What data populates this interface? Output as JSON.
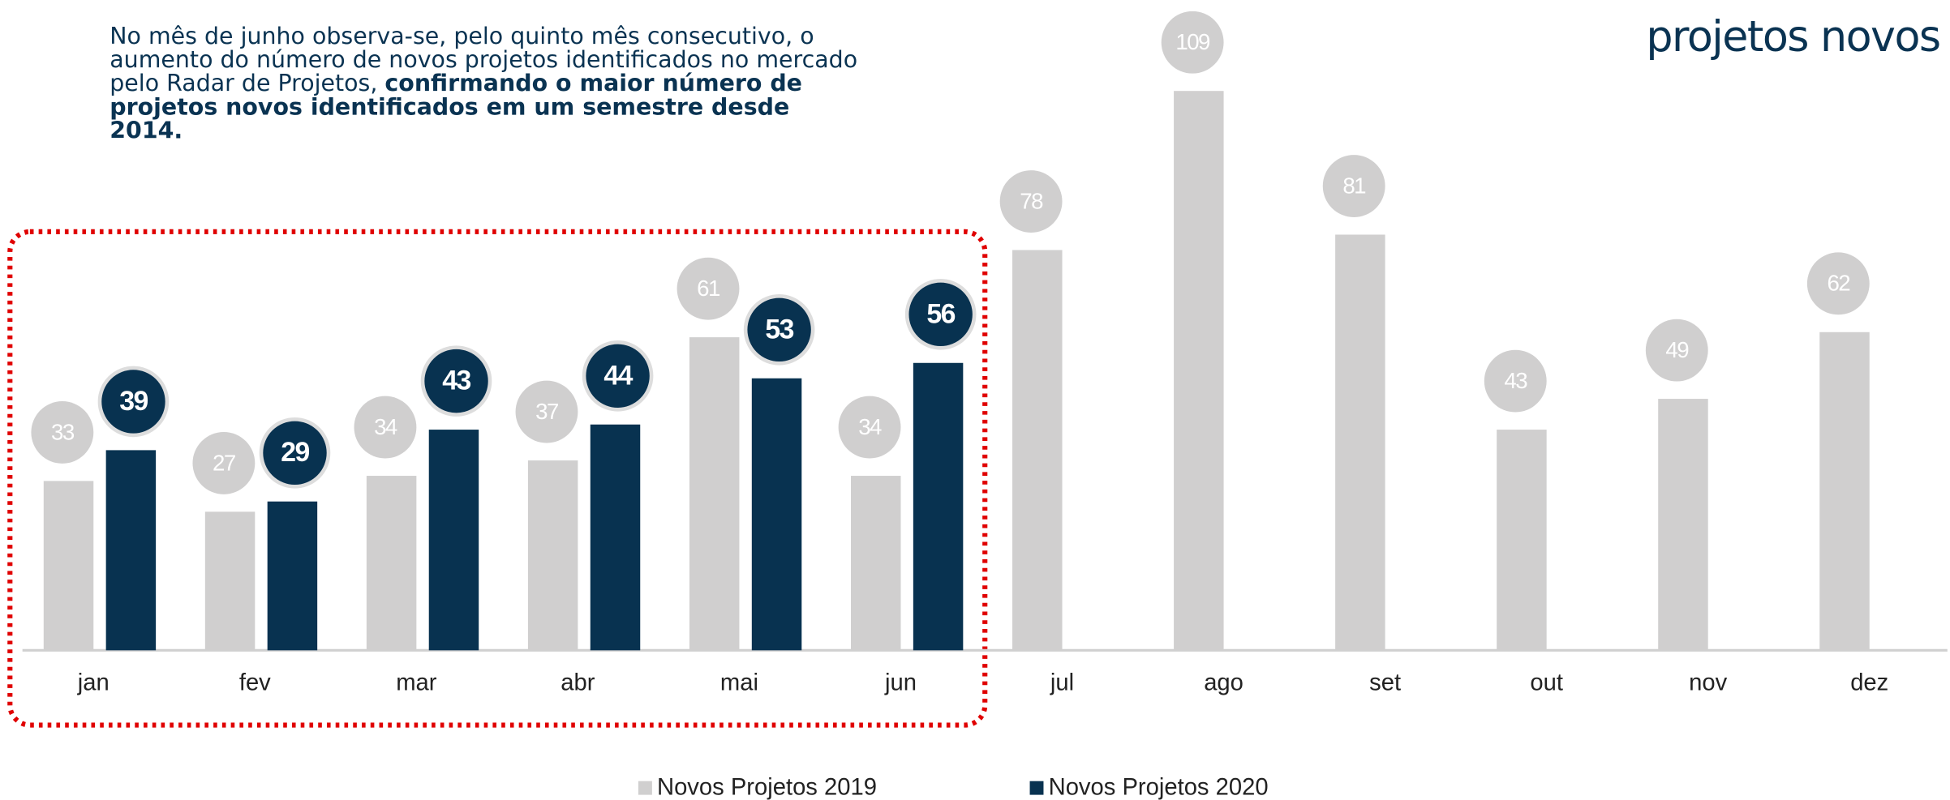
{
  "chart_data": {
    "type": "bar",
    "title": "projetos novos",
    "note": {
      "normal": "No mês de junho observa-se, pelo quinto mês consecutivo, o aumento do número de novos projetos identificados no mercado pelo Radar de Projetos, ",
      "bold": "confirmando o maior número de projetos novos identificados em um semestre desde 2014."
    },
    "categories": [
      "jan",
      "fev",
      "mar",
      "abr",
      "mai",
      "jun",
      "jul",
      "ago",
      "set",
      "out",
      "nov",
      "dez"
    ],
    "series": [
      {
        "name": "Novos Projetos 2019",
        "color": "#d0cfcf",
        "values": [
          33,
          27,
          34,
          37,
          61,
          34,
          78,
          109,
          81,
          43,
          49,
          62
        ]
      },
      {
        "name": "Novos Projetos 2020",
        "color": "#083250",
        "values": [
          39,
          29,
          43,
          44,
          53,
          56,
          null,
          null,
          null,
          null,
          null,
          null
        ]
      }
    ]
  }
}
